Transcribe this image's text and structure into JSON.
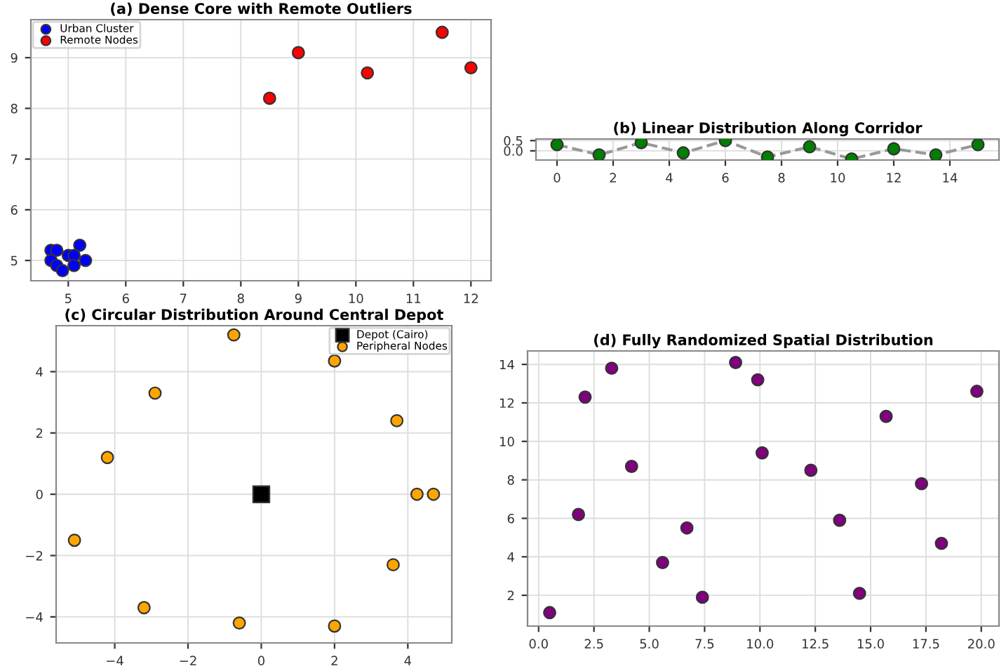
{
  "chart_data": [
    {
      "type": "scatter",
      "title": "(a) Dense Core with Remote Outliers",
      "legend": "top left",
      "grid": true,
      "marker": "circle",
      "xlim": [
        4.35,
        12.35
      ],
      "xticks": [
        5,
        6,
        7,
        8,
        9,
        10,
        11,
        12
      ],
      "ylim": [
        4.6,
        9.75
      ],
      "yticks": [
        5,
        6,
        7,
        8,
        9
      ],
      "series": [
        {
          "name": "Urban Cluster",
          "color": "#0000ff",
          "x": [
            4.7,
            4.8,
            4.7,
            4.8,
            4.9,
            5.0,
            5.1,
            5.1,
            5.2,
            5.3
          ],
          "values": [
            5.2,
            5.2,
            5.0,
            4.9,
            4.8,
            5.1,
            5.1,
            4.9,
            5.3,
            5.0
          ]
        },
        {
          "name": "Remote Nodes",
          "color": "#ff0000",
          "x": [
            8.5,
            9,
            10.2,
            11.5,
            12
          ],
          "values": [
            8.2,
            9.1,
            8.7,
            9.5,
            8.8
          ]
        }
      ]
    },
    {
      "type": "scatter",
      "title": "(b) Linear Distribution Along Corridor",
      "grid": true,
      "xlim": [
        -0.75,
        15.75
      ],
      "xticks": [
        0,
        2,
        4,
        6,
        8,
        10,
        12,
        14
      ],
      "ylim": [
        -0.45,
        0.58
      ],
      "yticks": [
        {
          "value": 0,
          "label": "0.0"
        },
        0.5
      ],
      "series": [
        {
          "type": "line",
          "line_style": "dashed",
          "color": "#999999",
          "x": [
            0,
            1.5,
            3,
            4.5,
            6,
            7.5,
            9,
            10.5,
            12,
            13.5,
            15
          ],
          "values": [
            0.3,
            -0.2,
            0.4,
            -0.1,
            0.5,
            -0.3,
            0.2,
            -0.4,
            0.1,
            -0.2,
            0.3
          ]
        },
        {
          "type": "scatter",
          "marker": "circle",
          "color": "#008000",
          "x": [
            0,
            1.5,
            3,
            4.5,
            6,
            7.5,
            9,
            10.5,
            12,
            13.5,
            15
          ],
          "values": [
            0.3,
            -0.2,
            0.4,
            -0.1,
            0.5,
            -0.3,
            0.2,
            -0.4,
            0.1,
            -0.2,
            0.3
          ]
        }
      ]
    },
    {
      "type": "scatter",
      "title": "(c) Circular Distribution Around Central Depot",
      "legend": "top right",
      "grid": true,
      "xlim": [
        -5.6,
        5.2
      ],
      "xticks": [
        {
          "value": -4,
          "label": "−4"
        },
        {
          "value": -2,
          "label": "−2"
        },
        0,
        2,
        4
      ],
      "ylim": [
        -4.85,
        5.5
      ],
      "yticks": [
        {
          "value": -4,
          "label": "−4"
        },
        {
          "value": -2,
          "label": "−2"
        },
        0,
        2,
        4
      ],
      "series": [
        {
          "name": "Depot (Cairo)",
          "marker": "square",
          "color": "#000000",
          "x": [
            0
          ],
          "values": [
            0
          ]
        },
        {
          "name": "Peripheral Nodes",
          "marker": "circle",
          "color": "#ffa500",
          "x": [
            -0.75,
            2,
            -2.9,
            3.7,
            -4.2,
            4.25,
            4.7,
            -5.1,
            3.6,
            -3.2,
            -0.6,
            2
          ],
          "values": [
            5.2,
            4.35,
            3.3,
            2.4,
            1.2,
            0,
            0,
            -1.5,
            -2.3,
            -3.7,
            -4.2,
            -4.3
          ]
        }
      ]
    },
    {
      "type": "scatter",
      "title": "(d) Fully Randomized Spatial Distribution",
      "grid": true,
      "marker": "circle",
      "xlim": [
        -0.5,
        20.8
      ],
      "xticks": [
        {
          "value": 0,
          "label": "0.0"
        },
        2.5,
        {
          "value": 5,
          "label": "5.0"
        },
        7.5,
        {
          "value": 10,
          "label": "10.0"
        },
        12.5,
        {
          "value": 15,
          "label": "15.0"
        },
        17.5,
        {
          "value": 20,
          "label": "20.0"
        }
      ],
      "ylim": [
        0.4,
        14.7
      ],
      "yticks": [
        2,
        4,
        6,
        8,
        10,
        12,
        14
      ],
      "series": [
        {
          "color": "#800080",
          "x": [
            0.5,
            1.8,
            2.1,
            3.3,
            4.2,
            5.6,
            6.7,
            7.4,
            8.9,
            9.9,
            10.1,
            12.3,
            13.6,
            14.5,
            15.7,
            17.3,
            18.2,
            19.8
          ],
          "values": [
            1.1,
            6.2,
            12.3,
            13.8,
            8.7,
            3.7,
            5.5,
            1.9,
            14.1,
            13.2,
            9.4,
            8.5,
            5.9,
            2.1,
            11.3,
            7.8,
            4.7,
            12.6
          ]
        }
      ]
    }
  ]
}
